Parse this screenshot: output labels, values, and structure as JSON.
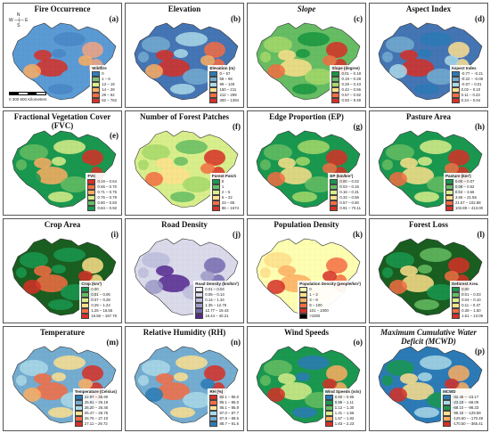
{
  "panels": [
    {
      "key": "a",
      "title": "Fire Occurrence",
      "letter": "(a)",
      "italic": false,
      "legend_title": "Wildfire",
      "labels": [
        "0",
        "1 – 6",
        "13 – 19",
        "14 – 28",
        "29 – 62",
        "62 – 762"
      ],
      "colors": [
        "#2f7fc1",
        "#7fbf7b",
        "#d9ef8b",
        "#fdae61",
        "#f46d43",
        "#d73027"
      ],
      "map_colors": [
        "#5b9bd5",
        "#5b9bd5",
        "#4a86c5",
        "#f4a582",
        "#d73027",
        "#fdae61"
      ]
    },
    {
      "key": "b",
      "title": "Elevation",
      "letter": "(b)",
      "italic": false,
      "legend_title": "Elevation (m)",
      "labels": [
        "0 – 57",
        "58 – 98",
        "99 – 149",
        "150 – 211",
        "212 – 299",
        "300 – 1394"
      ],
      "colors": [
        "#2c7bb6",
        "#74add1",
        "#abd9e9",
        "#fee090",
        "#f46d43",
        "#d73027"
      ],
      "map_colors": [
        "#4575b4",
        "#74add1",
        "#abd9e9",
        "#f46d43",
        "#d73027",
        "#fdae61"
      ]
    },
    {
      "key": "c",
      "title": "Slope",
      "letter": "(c)",
      "italic": true,
      "legend_title": "Slope (degree)",
      "labels": [
        "0.01 – 0.18",
        "0.19 – 0.28",
        "0.29 – 0.43",
        "0.42 – 0.56",
        "0.57 – 0.92",
        "0.93 – 9.49"
      ],
      "colors": [
        "#1a9641",
        "#66bd63",
        "#a6d96a",
        "#fee08b",
        "#f46d43",
        "#d73027"
      ],
      "map_colors": [
        "#66bd63",
        "#a6d96a",
        "#1a9641",
        "#d73027",
        "#fee08b",
        "#f46d43"
      ]
    },
    {
      "key": "d",
      "title": "Aspect Index",
      "letter": "(d)",
      "italic": false,
      "legend_title": "Aspect Index",
      "labels": [
        "-0.77 – -0.21",
        "-0.22 – -0.08",
        "-0.07 – 0.01",
        "0.02 – 0.10",
        "0.11 – 0.23",
        "0.24 – 0.64"
      ],
      "colors": [
        "#2c7bb6",
        "#74add1",
        "#abd9e9",
        "#fee090",
        "#f46d43",
        "#d73027"
      ],
      "map_colors": [
        "#4575b4",
        "#74add1",
        "#2c7bb6",
        "#fee090",
        "#d73027",
        "#abd9e9"
      ]
    },
    {
      "key": "e",
      "title": "Fractional Vegetation Cover (FVC)",
      "letter": "(e)",
      "italic": false,
      "legend_title": "FVC",
      "labels": [
        "0.19 – 0.64",
        "0.65 – 0.70",
        "0.71 – 0.75",
        "0.76 – 0.79",
        "0.80 – 0.83",
        "0.84 – 0.92"
      ],
      "colors": [
        "#d73027",
        "#f46d43",
        "#fdae61",
        "#d9ef8b",
        "#66bd63",
        "#1a9850"
      ],
      "map_colors": [
        "#1a9850",
        "#66bd63",
        "#d9ef8b",
        "#d73027",
        "#fdae61",
        "#1a9850"
      ]
    },
    {
      "key": "f",
      "title": "Number of Forest Patches",
      "letter": "(f)",
      "italic": false,
      "legend_title": "Forest Patch",
      "labels": [
        "0",
        "1",
        "2 – 5",
        "6 – 22",
        "23 – 85",
        "86 – 1674"
      ],
      "colors": [
        "#1a9850",
        "#66bd63",
        "#d9ef8b",
        "#fee08b",
        "#f46d43",
        "#d73027"
      ],
      "map_colors": [
        "#d9ef8b",
        "#a6d96a",
        "#66bd63",
        "#d73027",
        "#fee08b",
        "#f46d43"
      ]
    },
    {
      "key": "g",
      "title": "Edge Proportion (EP)",
      "letter": "(g)",
      "italic": false,
      "legend_title": "EP (km/km²)",
      "labels": [
        "0.00 – 0.02",
        "0.03 – 0.15",
        "0.16 – 0.31",
        "0.32 – 0.56",
        "0.57 – 0.90",
        "0.91 – 70.11"
      ],
      "colors": [
        "#1a9850",
        "#66bd63",
        "#d9ef8b",
        "#fee08b",
        "#f46d43",
        "#d73027"
      ],
      "map_colors": [
        "#1a9850",
        "#66bd63",
        "#a6d96a",
        "#d73027",
        "#fee08b",
        "#f46d43"
      ]
    },
    {
      "key": "h",
      "title": "Pasture Area",
      "letter": "(h)",
      "italic": false,
      "legend_title": "Pasture (km²)",
      "labels": [
        "0.00 – 0.07",
        "0.08 – 0.52",
        "0.53 – 3.65",
        "3.66 – 21.56",
        "21.57 – 102.88",
        "102.89 – 413.00"
      ],
      "colors": [
        "#1a9850",
        "#66bd63",
        "#d9ef8b",
        "#fee08b",
        "#f46d43",
        "#d73027"
      ],
      "map_colors": [
        "#1a9850",
        "#66bd63",
        "#d9ef8b",
        "#d73027",
        "#fee08b",
        "#f46d43"
      ]
    },
    {
      "key": "i",
      "title": "Crop Area",
      "letter": "(i)",
      "italic": false,
      "legend_title": "Crop (km²)",
      "labels": [
        "0.00",
        "0.01 – 0.06",
        "0.07 – 0.28",
        "0.29 – 1.24",
        "1.25 – 16.55",
        "16.56 – 167.76"
      ],
      "colors": [
        "#1a9850",
        "#66bd63",
        "#d9ef8b",
        "#fee08b",
        "#f46d43",
        "#d73027"
      ],
      "map_colors": [
        "#1a5e20",
        "#1a9850",
        "#1a9850",
        "#fee08b",
        "#f46d43",
        "#d73027"
      ]
    },
    {
      "key": "j",
      "title": "Road Density",
      "letter": "(j)",
      "italic": false,
      "legend_title": "Road Density (km/km²)",
      "labels": [
        "0.01 – 0.04",
        "0.05 – 0.13",
        "0.14 – 1.34",
        "1.35 – 12.76",
        "12.77 – 19.43",
        "19.44 – 40.21"
      ],
      "colors": [
        "#f2f0f7",
        "#dadaeb",
        "#bcbddc",
        "#9e9ac8",
        "#756bb1",
        "#54278f"
      ],
      "map_colors": [
        "#dadaeb",
        "#bcbddc",
        "#dadaeb",
        "#756bb1",
        "#54278f",
        "#9e9ac8"
      ]
    },
    {
      "key": "k",
      "title": "Population Density",
      "letter": "(k)",
      "italic": false,
      "legend_title": "Population Density (people/km²)",
      "labels": [
        "0",
        "1 – 2",
        "3 – 8",
        "9 – 100",
        "101 – 1000",
        ">1000"
      ],
      "colors": [
        "#ffffb2",
        "#fee08b",
        "#fdae61",
        "#f46d43",
        "#d73027",
        "#000000"
      ],
      "map_colors": [
        "#ffffb2",
        "#fee08b",
        "#ffffb2",
        "#f46d43",
        "#fdae61",
        "#d73027"
      ]
    },
    {
      "key": "l",
      "title": "Forest Loss",
      "letter": "(l)",
      "italic": false,
      "legend_title": "Deforest Area",
      "labels": [
        "0.00",
        "0.01 – 0.03",
        "0.04 – 0.10",
        "0.11 – 0.37",
        "0.38 – 1.50",
        "1.51 – 13.09"
      ],
      "colors": [
        "#1a9850",
        "#66bd63",
        "#d9ef8b",
        "#fee08b",
        "#f46d43",
        "#d73027"
      ],
      "map_colors": [
        "#1a5e20",
        "#1a9850",
        "#66bd63",
        "#d73027",
        "#fee08b",
        "#f46d43"
      ]
    },
    {
      "key": "m",
      "title": "Temperature",
      "letter": "(m)",
      "italic": false,
      "legend_title": "Temperature (Celsius)",
      "labels": [
        "22.97 – 25.90",
        "25.91 – 26.19",
        "26.20 – 26.46",
        "26.47 – 26.75",
        "26.76 – 27.10",
        "27.11 – 29.72"
      ],
      "colors": [
        "#2c7bb6",
        "#74add1",
        "#abd9e9",
        "#fee090",
        "#f46d43",
        "#d73027"
      ],
      "map_colors": [
        "#74add1",
        "#abd9e9",
        "#fee090",
        "#d73027",
        "#f46d43",
        "#fdae61"
      ]
    },
    {
      "key": "n",
      "title": "Relative Humidity (RH)",
      "letter": "(n)",
      "italic": false,
      "legend_title": "RH (%)",
      "labels": [
        "82.1 – 85.0",
        "85.1 – 86.0",
        "86.1 – 86.9",
        "87.0 – 87.7",
        "87.8 – 88.6",
        "88.7 – 91.6"
      ],
      "colors": [
        "#d73027",
        "#f46d43",
        "#fee090",
        "#abd9e9",
        "#74add1",
        "#2c7bb6"
      ],
      "map_colors": [
        "#74add1",
        "#abd9e9",
        "#fee090",
        "#d73027",
        "#f46d43",
        "#2c7bb6"
      ]
    },
    {
      "key": "o",
      "title": "Wind Speeds",
      "letter": "(o)",
      "italic": false,
      "legend_title": "Wind Speeds (m/s)",
      "labels": [
        "0.60 – 0.95",
        "0.96 – 1.11",
        "1.12 – 1.30",
        "1.31 – 1.56",
        "1.57 – 1.82",
        "1.83 – 2.23"
      ],
      "colors": [
        "#2c7bb6",
        "#1a9850",
        "#66bd63",
        "#d9ef8b",
        "#fdae61",
        "#d73027"
      ],
      "map_colors": [
        "#1a9850",
        "#66bd63",
        "#2c7bb6",
        "#fdae61",
        "#d9ef8b",
        "#d73027"
      ]
    },
    {
      "key": "p",
      "title": "Maximum Cumulative Water Deficit (MCWD)",
      "letter": "(p)",
      "italic": true,
      "legend_title": "MCWD",
      "labels": [
        "-32.45 – -23.17",
        "-23.18 – -68.09",
        "-68.10 – -98.33",
        "-98.33 – -129.59",
        "-129.60 – -170.49",
        "-170.50 – -365.41"
      ],
      "colors": [
        "#2c7bb6",
        "#abd9e9",
        "#1a9850",
        "#fee08b",
        "#fdae61",
        "#d73027"
      ],
      "map_colors": [
        "#2c7bb6",
        "#1a9850",
        "#abd9e9",
        "#fdae61",
        "#fee08b",
        "#d73027"
      ]
    }
  ],
  "north_label": "N",
  "compass_label": "W ─┼─ E",
  "compass_south": "S",
  "scale_label": "0   300   600 Kilometers"
}
